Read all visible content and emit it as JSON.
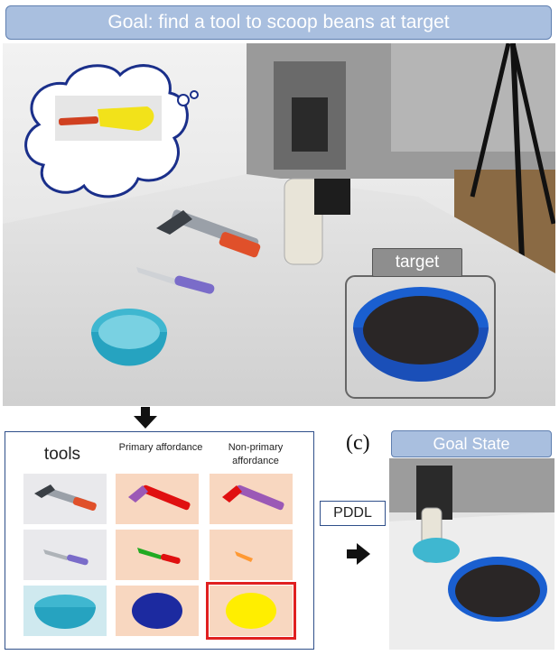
{
  "goal_banner": "Goal: find a tool to scoop beans at target",
  "target_label": "target",
  "table": {
    "tools_header": "tools",
    "primary_header": "Primary affordance",
    "nonprimary_header": "Non-primary affordance"
  },
  "panel_label": "(c)",
  "goal_state_label": "Goal State",
  "pddl_label": "PDDL",
  "colors": {
    "banner_fill": "#a9bfdf",
    "affordance_bg": "#f8d7c0",
    "primary_hammer": "#e01010",
    "nonprimary_hammer": "#9b59b6",
    "primary_knife": "#22aa22",
    "nonprimary_knife": "#ff9933",
    "primary_bowl": "#1c2aa0",
    "nonprimary_bowl": "#ffee00",
    "highlight": "#e02020"
  }
}
